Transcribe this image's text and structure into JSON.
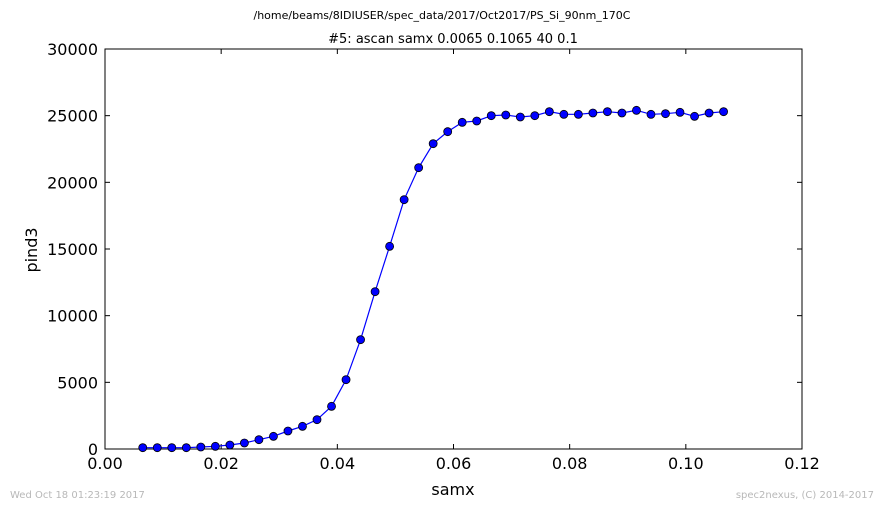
{
  "header": {
    "file_path": "/home/beams/8IDIUSER/spec_data/2017/Oct2017/PS_Si_90nm_170C"
  },
  "footer": {
    "timestamp": "Wed Oct 18 01:23:19 2017",
    "credit": "spec2nexus, (C) 2014-2017"
  },
  "chart_data": {
    "type": "line",
    "title": "#5: ascan  samx 0.0065 0.1065  40 0.1",
    "xlabel": "samx",
    "ylabel": "pind3",
    "xlim": [
      0.0,
      0.12
    ],
    "ylim": [
      0,
      30000
    ],
    "x_ticks": [
      "0.00",
      "0.02",
      "0.04",
      "0.06",
      "0.08",
      "0.10",
      "0.12"
    ],
    "y_ticks": [
      "0",
      "5000",
      "10000",
      "15000",
      "20000",
      "25000",
      "30000"
    ],
    "grid": false,
    "line_color": "#0000ff",
    "marker": "circle",
    "series": [
      {
        "x": [
          0.0065,
          0.009,
          0.0115,
          0.014,
          0.0165,
          0.019,
          0.0215,
          0.024,
          0.0265,
          0.029,
          0.0315,
          0.034,
          0.0365,
          0.039,
          0.0415,
          0.044,
          0.0465,
          0.049,
          0.0515,
          0.054,
          0.0565,
          0.059,
          0.0615,
          0.064,
          0.0665,
          0.069,
          0.0715,
          0.074,
          0.0765,
          0.079,
          0.0815,
          0.084,
          0.0865,
          0.089,
          0.0915,
          0.094,
          0.0965,
          0.099,
          0.1015,
          0.104,
          0.1065
        ],
        "y": [
          100,
          100,
          100,
          100,
          150,
          200,
          300,
          450,
          700,
          950,
          1350,
          1700,
          2200,
          3200,
          5200,
          8200,
          11800,
          15200,
          18700,
          21100,
          22900,
          23800,
          24500,
          24600,
          25000,
          25050,
          24900,
          25000,
          25300,
          25100,
          25100,
          25200,
          25300,
          25200,
          25400,
          25100,
          25150,
          25250,
          24950,
          25200,
          25300
        ]
      }
    ]
  }
}
